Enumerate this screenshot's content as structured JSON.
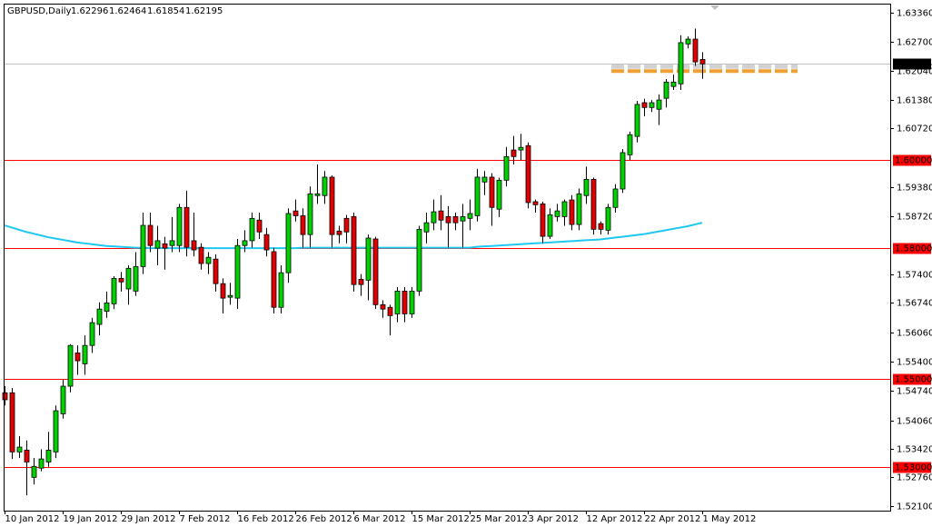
{
  "chart_data": {
    "type": "candlestick",
    "title": "GBPUSD,Daily",
    "categories": [
      "10 Jan 2012",
      null,
      null,
      null,
      null,
      null,
      null,
      null,
      "19 Jan 2012",
      null,
      null,
      null,
      null,
      null,
      null,
      null,
      "29 Jan 2012",
      null,
      null,
      null,
      null,
      null,
      null,
      null,
      "7 Feb 2012",
      null,
      null,
      null,
      null,
      null,
      null,
      null,
      "16 Feb 2012",
      null,
      null,
      null,
      null,
      null,
      null,
      null,
      "26 Feb 2012",
      null,
      null,
      null,
      null,
      null,
      null,
      null,
      "6 Mar 2012",
      null,
      null,
      null,
      null,
      null,
      null,
      null,
      "15 Mar 2012",
      null,
      null,
      null,
      null,
      null,
      null,
      null,
      "25 Mar 2012",
      null,
      null,
      null,
      null,
      null,
      null,
      null,
      "3 Apr 2012",
      null,
      null,
      null,
      null,
      null,
      null,
      null,
      "12 Apr 2012",
      null,
      null,
      null,
      null,
      null,
      null,
      null,
      "22 Apr 2012",
      null,
      null,
      null,
      null,
      null,
      null,
      null,
      "1 May 2012"
    ],
    "open": [
      1.5469,
      1.5469,
      1.5334,
      1.5338,
      1.5276,
      1.5297,
      1.5311,
      1.5334,
      1.5421,
      1.5484,
      1.556,
      1.5535,
      1.5577,
      1.5625,
      1.5655,
      1.5672,
      1.573,
      1.5706,
      1.5701,
      1.5757,
      1.5851,
      1.5799,
      1.5809,
      1.5805,
      1.5805,
      1.5892,
      1.5816,
      1.5801,
      1.5764,
      1.5774,
      1.5718,
      1.5687,
      1.5685,
      1.5805,
      1.5816,
      1.5863,
      1.583,
      1.5791,
      1.5664,
      1.5743,
      1.5884,
      1.5873,
      1.583,
      1.5919,
      1.5919,
      1.5961,
      1.5838,
      1.5867,
      1.5871,
      1.5728,
      1.5726,
      1.582,
      1.567,
      1.5664,
      1.5649,
      1.5701,
      1.5649,
      1.5701,
      1.5836,
      1.5857,
      1.5884,
      1.5871,
      1.5871,
      1.5861,
      1.5867,
      1.5873,
      1.595,
      1.5961,
      1.5888,
      1.5954,
      1.6023,
      1.6023,
      1.6033,
      1.5905,
      1.59,
      1.5826,
      1.5871,
      1.5871,
      1.5909,
      1.5853,
      1.5919,
      1.5956,
      1.5855,
      1.584,
      1.5892,
      1.5934,
      1.6012,
      1.6054,
      1.6131,
      1.612,
      1.6116,
      1.6141,
      1.6168,
      1.6174,
      1.6265,
      1.6276,
      1.62296
    ],
    "high": [
      1.5484,
      1.548,
      1.537,
      1.536,
      1.532,
      1.534,
      1.538,
      1.544,
      1.55,
      1.558,
      1.5577,
      1.56,
      1.564,
      1.5675,
      1.57,
      1.5735,
      1.5745,
      1.576,
      1.579,
      1.588,
      1.588,
      1.585,
      1.5825,
      1.587,
      1.59,
      1.593,
      1.588,
      1.581,
      1.579,
      1.5785,
      1.573,
      1.572,
      1.582,
      1.584,
      1.588,
      1.588,
      1.5845,
      1.58,
      1.576,
      1.589,
      1.591,
      1.589,
      1.594,
      1.599,
      1.5975,
      1.5965,
      1.585,
      1.5875,
      1.588,
      1.574,
      1.583,
      1.5825,
      1.568,
      1.567,
      1.571,
      1.571,
      1.571,
      1.585,
      1.588,
      1.591,
      1.592,
      1.5895,
      1.588,
      1.59,
      1.591,
      1.598,
      1.5975,
      1.597,
      1.596,
      1.603,
      1.6055,
      1.606,
      1.604,
      1.591,
      1.5905,
      1.589,
      1.59,
      1.591,
      1.592,
      1.5935,
      1.5985,
      1.596,
      1.586,
      1.59,
      1.5945,
      1.6025,
      1.6065,
      1.6135,
      1.614,
      1.6137,
      1.615,
      1.6185,
      1.6195,
      1.6285,
      1.6282,
      1.63,
      1.62464
    ],
    "low": [
      1.544,
      1.5318,
      1.532,
      1.5235,
      1.526,
      1.529,
      1.53,
      1.532,
      1.541,
      1.547,
      1.551,
      1.551,
      1.556,
      1.56,
      1.564,
      1.566,
      1.57,
      1.567,
      1.569,
      1.574,
      1.579,
      1.576,
      1.575,
      1.579,
      1.579,
      1.578,
      1.578,
      1.575,
      1.574,
      1.57,
      1.565,
      1.567,
      1.566,
      1.579,
      1.58,
      1.582,
      1.578,
      1.565,
      1.565,
      1.572,
      1.586,
      1.58,
      1.58,
      1.59,
      1.59,
      1.58,
      1.581,
      1.581,
      1.57,
      1.569,
      1.568,
      1.566,
      1.564,
      1.56,
      1.563,
      1.563,
      1.564,
      1.569,
      1.581,
      1.584,
      1.584,
      1.58,
      1.584,
      1.58,
      1.584,
      1.586,
      1.592,
      1.585,
      1.587,
      1.594,
      1.599,
      1.6,
      1.589,
      1.588,
      1.581,
      1.582,
      1.586,
      1.585,
      1.584,
      1.584,
      1.59,
      1.583,
      1.583,
      1.583,
      1.588,
      1.5925,
      1.6,
      1.604,
      1.61,
      1.611,
      1.608,
      1.612,
      1.616,
      1.616,
      1.6255,
      1.6215,
      1.61854
    ],
    "close": [
      1.5453,
      1.5334,
      1.5345,
      1.5311,
      1.5301,
      1.5318,
      1.5338,
      1.5428,
      1.5484,
      1.5577,
      1.5542,
      1.5577,
      1.5629,
      1.566,
      1.5674,
      1.573,
      1.5722,
      1.5753,
      1.5757,
      1.5851,
      1.5805,
      1.5816,
      1.5799,
      1.5816,
      1.5892,
      1.5801,
      1.5795,
      1.5764,
      1.5778,
      1.5718,
      1.5685,
      1.5691,
      1.5805,
      1.5816,
      1.5867,
      1.5836,
      1.5795,
      1.5664,
      1.5743,
      1.5878,
      1.5873,
      1.583,
      1.5923,
      1.5923,
      1.5961,
      1.583,
      1.583,
      1.5836,
      1.5716,
      1.5716,
      1.5822,
      1.567,
      1.566,
      1.5645,
      1.5701,
      1.5649,
      1.5701,
      1.5842,
      1.5857,
      1.5882,
      1.5863,
      1.5857,
      1.5857,
      1.5871,
      1.5878,
      1.5961,
      1.5961,
      1.5892,
      1.5954,
      1.6008,
      1.6008,
      1.6029,
      1.5903,
      1.5898,
      1.5826,
      1.5875,
      1.5884,
      1.5905,
      1.5853,
      1.5923,
      1.5956,
      1.5842,
      1.5842,
      1.5892,
      1.5934,
      1.6017,
      1.6058,
      1.6127,
      1.612,
      1.6131,
      1.6137,
      1.6178,
      1.6178,
      1.6268,
      1.6276,
      1.6224,
      1.62195
    ],
    "up_color": "#00d200",
    "down_color": "#e00000",
    "moving_average": {
      "color": "#1ec8f0",
      "values": [
        1.5851,
        1.5846,
        1.5841,
        1.5836,
        1.5832,
        1.5828,
        1.5824,
        1.5821,
        1.5818,
        1.5815,
        1.5812,
        1.581,
        1.5808,
        1.5806,
        1.5804,
        1.5803,
        1.5802,
        1.5801,
        1.58,
        1.58,
        1.5799,
        1.5799,
        1.5799,
        1.5799,
        1.5799,
        1.5799,
        1.5799,
        1.5799,
        1.5799,
        1.5799,
        1.5799,
        1.5799,
        1.5799,
        1.5799,
        1.5799,
        1.5799,
        1.5799,
        1.5799,
        1.5799,
        1.5799,
        1.5799,
        1.58,
        1.58,
        1.58,
        1.58,
        1.58,
        1.58,
        1.58,
        1.58,
        1.58,
        1.58,
        1.58,
        1.58,
        1.58,
        1.58,
        1.58,
        1.58,
        1.58,
        1.58,
        1.58,
        1.58,
        1.58,
        1.58,
        1.58,
        1.58,
        1.5802,
        1.5803,
        1.5804,
        1.5805,
        1.5806,
        1.5807,
        1.5808,
        1.5809,
        1.581,
        1.5811,
        1.5812,
        1.5813,
        1.5814,
        1.5815,
        1.5816,
        1.5817,
        1.5818,
        1.5819,
        1.5821,
        1.5823,
        1.5825,
        1.5827,
        1.5829,
        1.5831,
        1.5834,
        1.5837,
        1.584,
        1.5843,
        1.5846,
        1.5849,
        1.5853,
        1.5857
      ]
    },
    "levels": [
      {
        "value": 1.6,
        "label": "1.60000"
      },
      {
        "value": 1.58,
        "label": "1.58000"
      },
      {
        "value": 1.55,
        "label": "1.55000"
      },
      {
        "value": 1.53,
        "label": "1.53000"
      }
    ],
    "level_color": "#ff0000",
    "annotation_line": {
      "value": 1.6203,
      "color": "#f0a030"
    },
    "ylim": [
      1.52,
      1.6357
    ],
    "yticks": [
      {
        "value": 1.6336,
        "label": "1.63360"
      },
      {
        "value": 1.627,
        "label": "1.62700"
      },
      {
        "value": 1.6204,
        "label": "1.62040"
      },
      {
        "value": 1.6138,
        "label": "1.61380"
      },
      {
        "value": 1.6072,
        "label": "1.60720"
      },
      {
        "value": 1.5938,
        "label": "1.59380"
      },
      {
        "value": 1.5872,
        "label": "1.58720"
      },
      {
        "value": 1.574,
        "label": "1.57400"
      },
      {
        "value": 1.5674,
        "label": "1.56740"
      },
      {
        "value": 1.5606,
        "label": "1.56060"
      },
      {
        "value": 1.554,
        "label": "1.55400"
      },
      {
        "value": 1.5474,
        "label": "1.54740"
      },
      {
        "value": 1.5406,
        "label": "1.54060"
      },
      {
        "value": 1.5342,
        "label": "1.53420"
      },
      {
        "value": 1.5276,
        "label": "1.52760"
      },
      {
        "value": 1.521,
        "label": "1.52100"
      }
    ]
  }
}
